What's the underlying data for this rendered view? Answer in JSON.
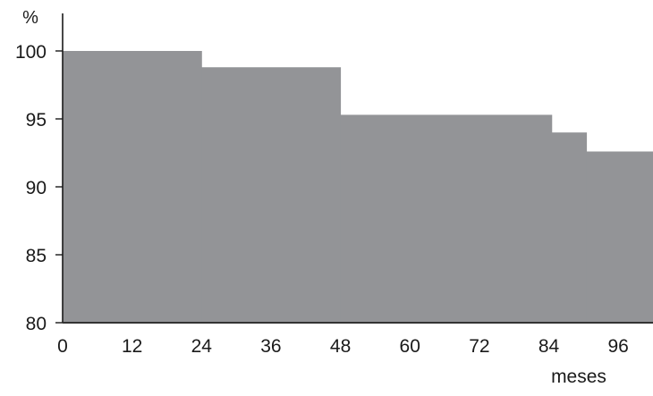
{
  "chart_data": {
    "type": "area",
    "subtype": "step",
    "title": "",
    "xlabel": "meses",
    "ylabel": "%",
    "xlim": [
      0,
      102
    ],
    "ylim": [
      80,
      100
    ],
    "x_ticks": [
      0,
      12,
      24,
      36,
      48,
      60,
      72,
      84,
      96
    ],
    "y_ticks": [
      80,
      85,
      90,
      95,
      100
    ],
    "grid": false,
    "fill_color": "#939497",
    "series": [
      {
        "steps": [
          {
            "x_start": 0,
            "x_end": 24,
            "y": 100
          },
          {
            "x_start": 24,
            "x_end": 48,
            "y": 98.8
          },
          {
            "x_start": 48,
            "x_end": 84.5,
            "y": 95.3
          },
          {
            "x_start": 84.5,
            "x_end": 90.5,
            "y": 94.0
          },
          {
            "x_start": 90.5,
            "x_end": 102,
            "y": 92.6
          }
        ]
      }
    ]
  }
}
